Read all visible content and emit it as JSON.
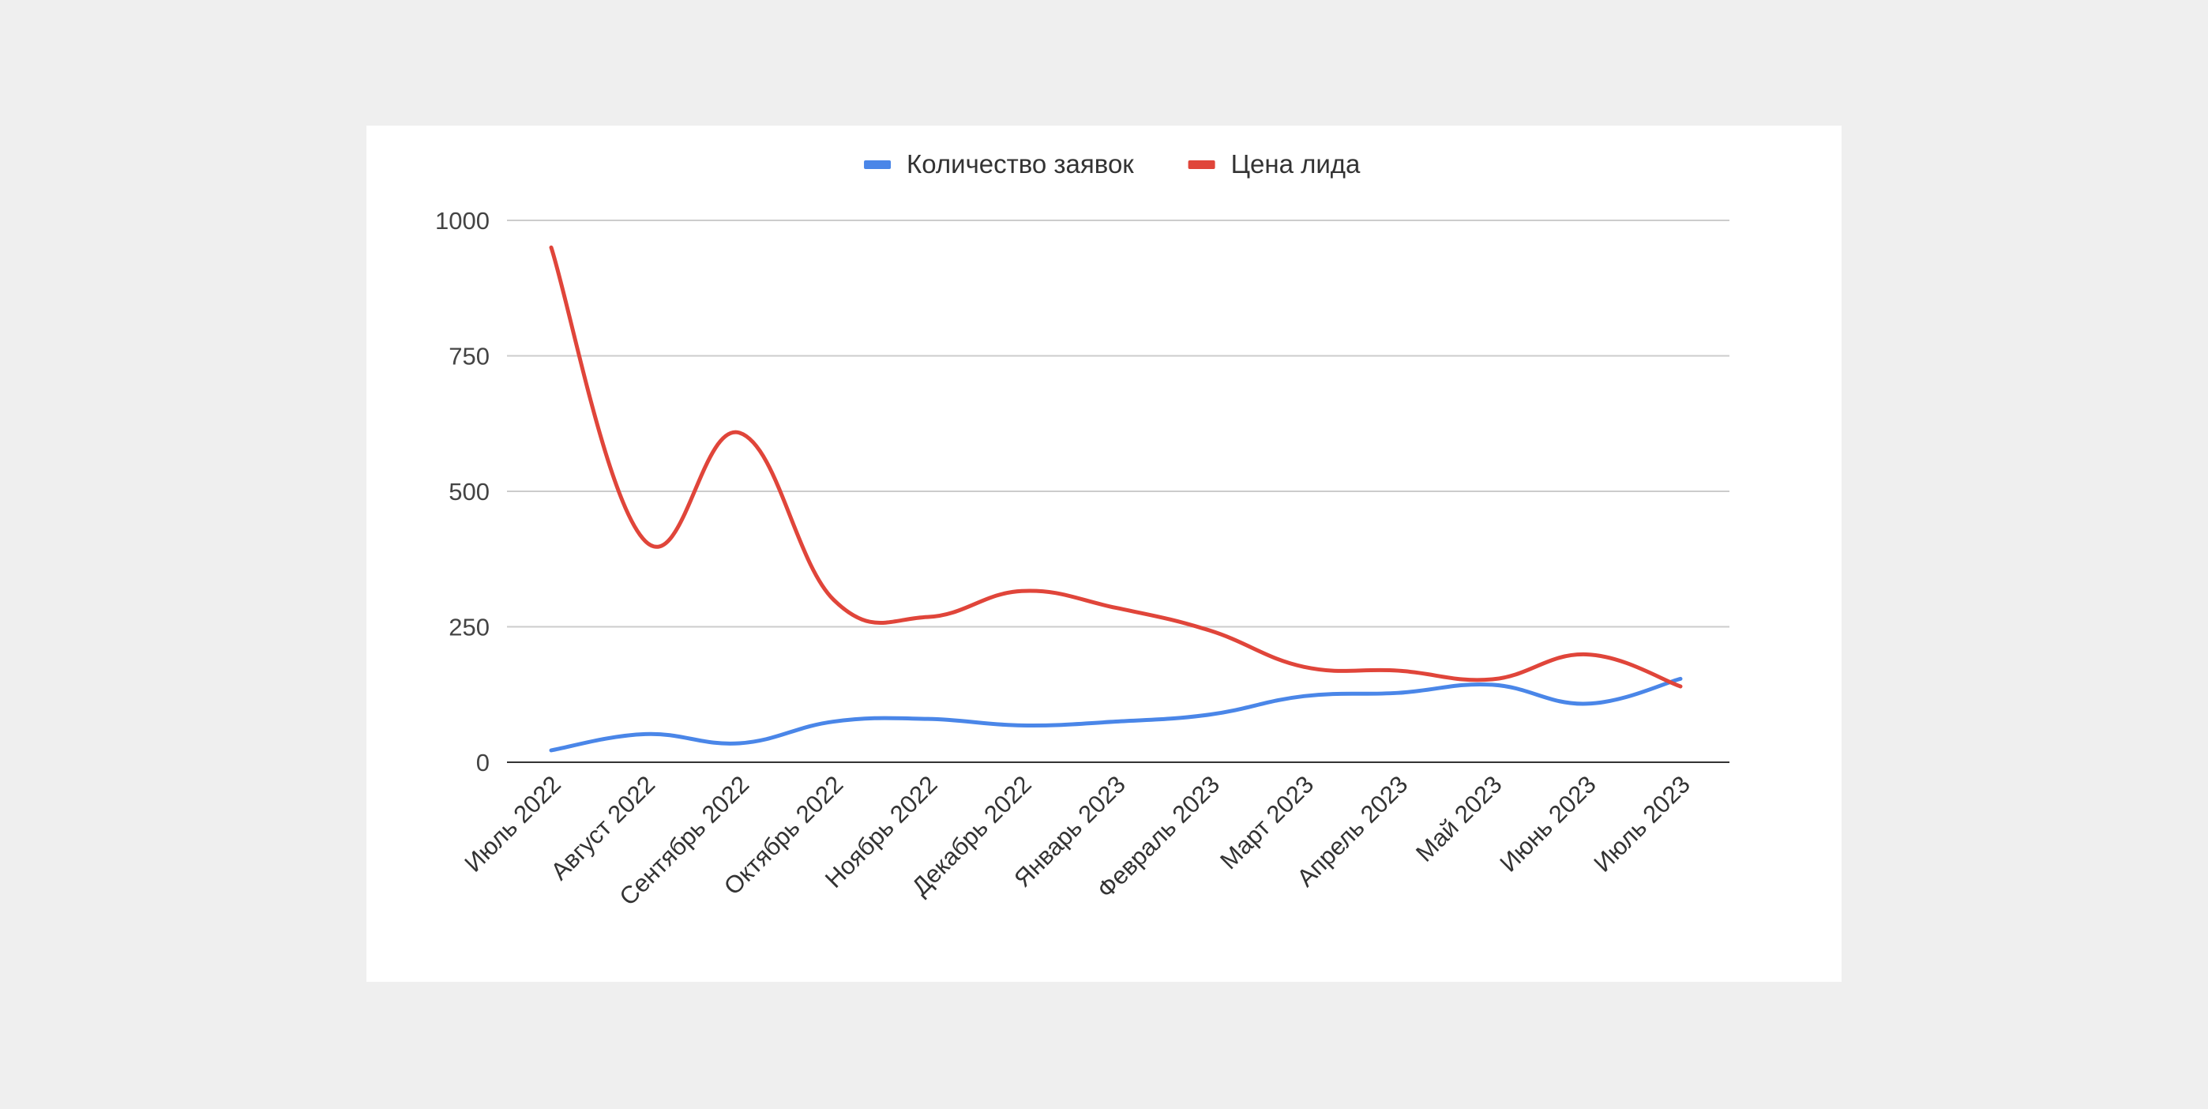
{
  "chart_data": {
    "type": "line",
    "smooth": true,
    "categories": [
      "Июль 2022",
      "Август 2022",
      "Сентябрь 2022",
      "Октябрь 2022",
      "Ноябрь 2022",
      "Декабрь 2022",
      "Январь 2023",
      "Февраль 2023",
      "Март 2023",
      "Апрель 2023",
      "Май 2023",
      "Июнь 2023",
      "Июль 2023"
    ],
    "series": [
      {
        "name": "Количество заявок",
        "color": "#4a86e8",
        "values": [
          22,
          52,
          35,
          75,
          80,
          68,
          75,
          88,
          122,
          128,
          143,
          108,
          154
        ]
      },
      {
        "name": "Цена лида",
        "color": "#e0453a",
        "values": [
          950,
          408,
          608,
          300,
          268,
          316,
          285,
          243,
          176,
          169,
          153,
          199,
          140
        ]
      }
    ],
    "ylim": [
      0,
      1000
    ],
    "yticks": [
      0,
      250,
      500,
      750,
      1000
    ],
    "yticklabels": [
      "0",
      "250",
      "500",
      "750",
      "1000"
    ],
    "grid": true,
    "legend_position": "top-center",
    "title": "",
    "xlabel": "",
    "ylabel": ""
  }
}
